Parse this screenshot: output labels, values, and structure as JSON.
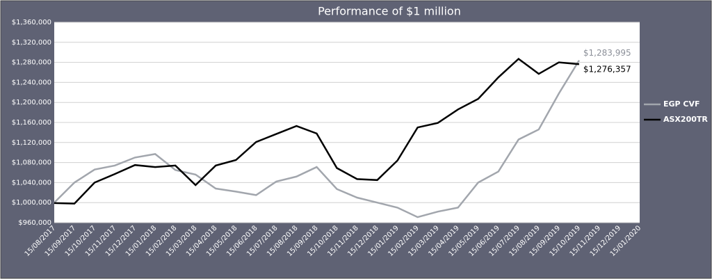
{
  "chart_data": {
    "type": "line",
    "title": "Performance of $1 million",
    "categories": [
      "15/08/2017",
      "15/09/2017",
      "15/10/2017",
      "15/11/2017",
      "15/12/2017",
      "15/01/2018",
      "15/02/2018",
      "15/03/2018",
      "15/04/2018",
      "15/05/2018",
      "15/06/2018",
      "15/07/2018",
      "15/08/2018",
      "15/09/2018",
      "15/10/2018",
      "15/11/2018",
      "15/12/2018",
      "15/01/2019",
      "15/02/2019",
      "15/03/2019",
      "15/04/2019",
      "15/05/2019",
      "15/06/2019",
      "15/07/2019",
      "15/08/2019",
      "15/09/2019",
      "15/10/2019",
      "15/11/2019",
      "15/12/2019",
      "15/01/2020"
    ],
    "series": [
      {
        "name": "EGP CVF",
        "color": "#a2a6ad",
        "values": [
          1000000,
          1040000,
          1066000,
          1074000,
          1090000,
          1097000,
          1065000,
          1056000,
          1028000,
          1022000,
          1015000,
          1042000,
          1052000,
          1071000,
          1027000,
          1010000,
          1000000,
          990000,
          971000,
          982000,
          990000,
          1040000,
          1062000,
          1126000,
          1146000,
          1218000,
          1283995,
          null,
          null,
          null
        ],
        "value_labels": [
          null,
          null,
          null,
          null,
          null,
          null,
          null,
          null,
          null,
          null,
          null,
          null,
          null,
          null,
          null,
          null,
          null,
          null,
          null,
          null,
          null,
          null,
          null,
          null,
          null,
          null,
          "$1,283,995",
          null,
          null,
          null
        ]
      },
      {
        "name": "ASX200TR",
        "color": "#000000",
        "values": [
          999000,
          998000,
          1040000,
          1057000,
          1075000,
          1071000,
          1074000,
          1035000,
          1074000,
          1085000,
          1121000,
          1137000,
          1153000,
          1138000,
          1069000,
          1047000,
          1045000,
          1084000,
          1150000,
          1159000,
          1186000,
          1207000,
          1250000,
          1287000,
          1257000,
          1280000,
          1276357,
          null,
          null,
          null
        ],
        "value_labels": [
          null,
          null,
          null,
          null,
          null,
          null,
          null,
          null,
          null,
          null,
          null,
          null,
          null,
          null,
          null,
          null,
          null,
          null,
          null,
          null,
          null,
          null,
          null,
          null,
          null,
          null,
          "$1,276,357",
          null,
          null,
          null
        ]
      }
    ],
    "ylim": [
      960000,
      1360000
    ],
    "yticks": [
      {
        "value": 960000,
        "label": "$960,000"
      },
      {
        "value": 1000000,
        "label": "$1,000,000"
      },
      {
        "value": 1040000,
        "label": "$1,040,000"
      },
      {
        "value": 1080000,
        "label": "$1,080,000"
      },
      {
        "value": 1120000,
        "label": "$1,120,000"
      },
      {
        "value": 1160000,
        "label": "$1,160,000"
      },
      {
        "value": 1200000,
        "label": "$1,200,000"
      },
      {
        "value": 1240000,
        "label": "$1,240,000"
      },
      {
        "value": 1280000,
        "label": "$1,280,000"
      },
      {
        "value": 1320000,
        "label": "$1,320,000"
      },
      {
        "value": 1360000,
        "label": "$1,360,000"
      }
    ],
    "grid": true,
    "legend": "right"
  }
}
